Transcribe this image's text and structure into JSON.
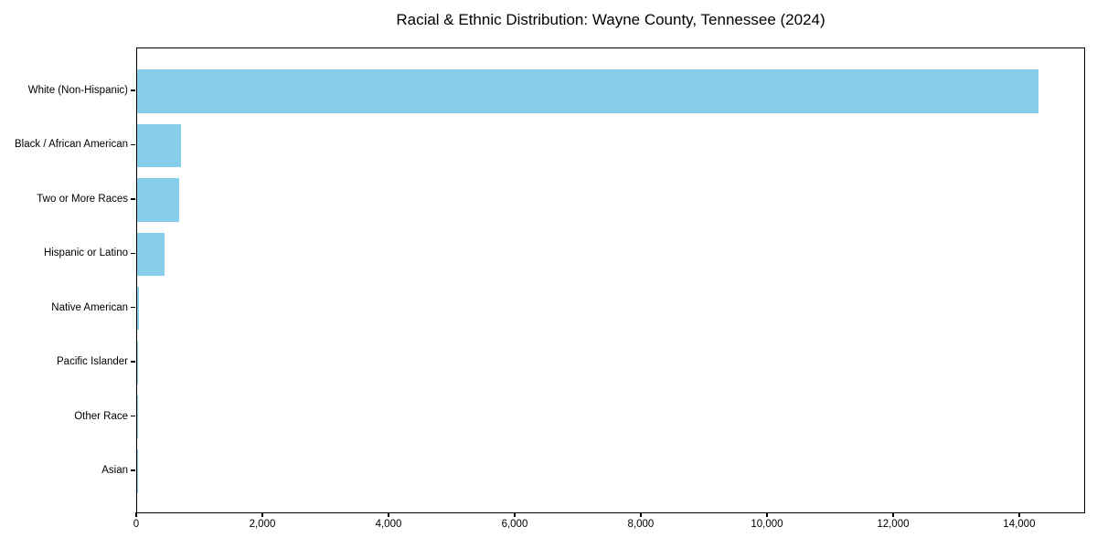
{
  "chart_data": {
    "type": "bar",
    "orientation": "horizontal",
    "title": "Racial & Ethnic Distribution: Wayne County, Tennessee (2024)",
    "categories": [
      "White (Non-Hispanic)",
      "Black / African American",
      "Two or More Races",
      "Hispanic or Latino",
      "Native American",
      "Pacific Islander",
      "Other Race",
      "Asian"
    ],
    "values": [
      14290,
      690,
      665,
      430,
      25,
      20,
      10,
      5
    ],
    "xlabel": "",
    "ylabel": "",
    "xlim": [
      0,
      15045
    ],
    "xticks": [
      0,
      2000,
      4000,
      6000,
      8000,
      10000,
      12000,
      14000
    ],
    "xtick_labels": [
      "0",
      "2,000",
      "4,000",
      "6,000",
      "8,000",
      "10,000",
      "12,000",
      "14,000"
    ],
    "grid": false,
    "legend": "none",
    "bar_color": "#87CEEB",
    "text_color": "#000000",
    "spine_color": "#000000",
    "background_color": "#ffffff"
  }
}
